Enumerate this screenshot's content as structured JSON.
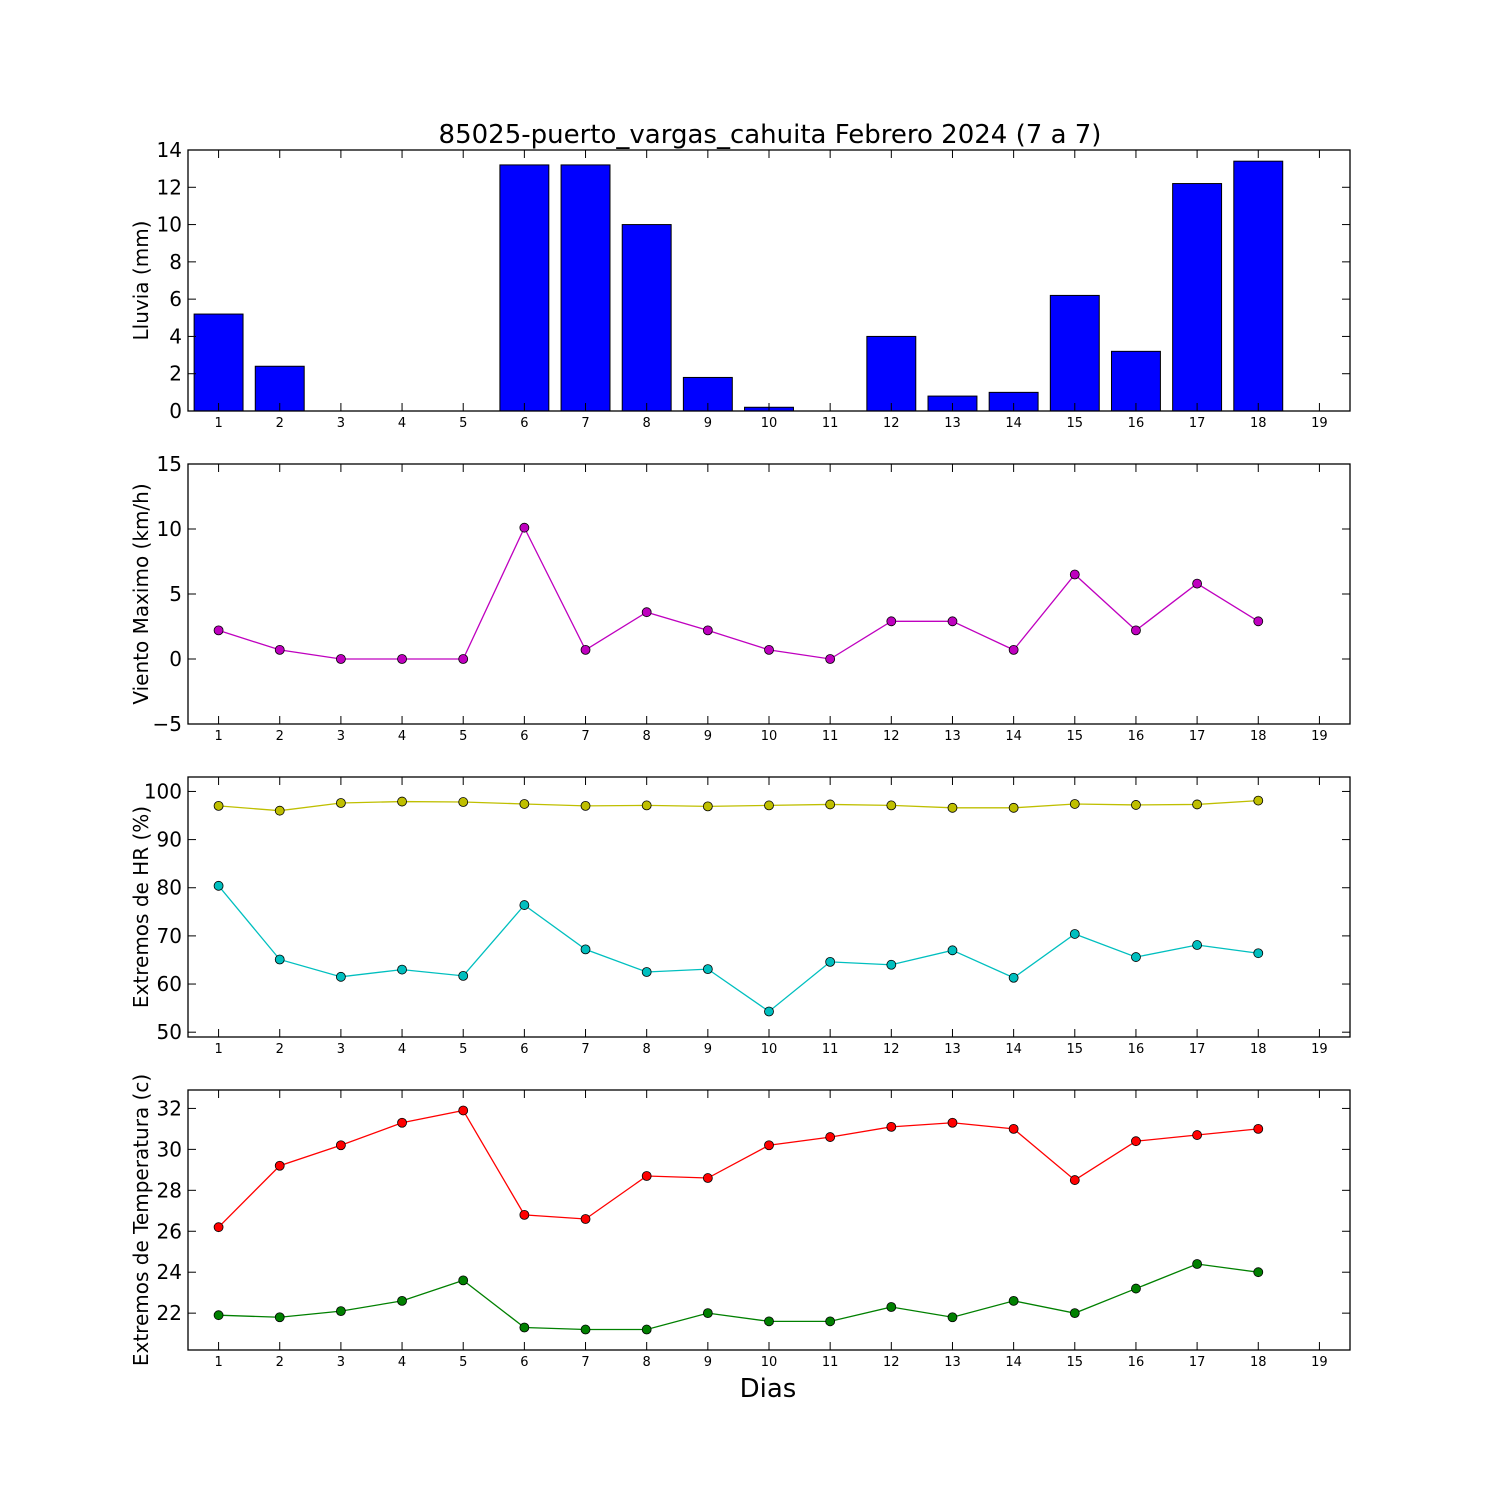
{
  "title": "85025-puerto_vargas_cahuita Febrero 2024  (7 a 7)",
  "xlabel": "Dias",
  "colors": {
    "rain": "#0000ff",
    "wind": "#bf00bf",
    "hr_max": "#bfbf00",
    "hr_min": "#00bfbf",
    "temp_max": "#ff0000",
    "temp_min": "#008000"
  },
  "chart_data": [
    {
      "type": "bar",
      "ylabel": "Lluvia (mm)",
      "xlim": [
        0.5,
        19.5
      ],
      "ylim": [
        0,
        14
      ],
      "yticks": [
        "0",
        "2",
        "4",
        "6",
        "8",
        "10",
        "12",
        "14"
      ],
      "xticks": [
        "1",
        "2",
        "3",
        "4",
        "5",
        "6",
        "7",
        "8",
        "9",
        "10",
        "11",
        "12",
        "13",
        "14",
        "15",
        "16",
        "17",
        "18",
        "19"
      ],
      "categories": [
        1,
        2,
        3,
        4,
        5,
        6,
        7,
        8,
        9,
        10,
        11,
        12,
        13,
        14,
        15,
        16,
        17,
        18
      ],
      "values": [
        5.2,
        2.4,
        0,
        0,
        0,
        13.2,
        13.2,
        10.0,
        1.8,
        0.2,
        0,
        4.0,
        0.8,
        1.0,
        6.2,
        3.2,
        12.2,
        13.4
      ]
    },
    {
      "type": "line",
      "ylabel": "Viento Maximo (km/h)",
      "xlim": [
        0.5,
        19.5
      ],
      "ylim": [
        -5,
        15
      ],
      "yticks": [
        "−5",
        "0",
        "5",
        "10",
        "15"
      ],
      "xticks": [
        "1",
        "2",
        "3",
        "4",
        "5",
        "6",
        "7",
        "8",
        "9",
        "10",
        "11",
        "12",
        "13",
        "14",
        "15",
        "16",
        "17",
        "18",
        "19"
      ],
      "x": [
        1,
        2,
        3,
        4,
        5,
        6,
        7,
        8,
        9,
        10,
        11,
        12,
        13,
        14,
        15,
        16,
        17,
        18
      ],
      "series": [
        {
          "values": [
            2.2,
            0.7,
            0,
            0,
            0,
            10.1,
            0.7,
            3.6,
            2.2,
            0.7,
            0,
            2.9,
            2.9,
            0.7,
            6.5,
            2.2,
            5.8,
            2.9
          ]
        }
      ]
    },
    {
      "type": "line",
      "ylabel": "Extremos de HR (%)",
      "xlim": [
        0.5,
        19.5
      ],
      "ylim": [
        49,
        103
      ],
      "yticks": [
        "50",
        "60",
        "70",
        "80",
        "90",
        "100"
      ],
      "xticks": [
        "1",
        "2",
        "3",
        "4",
        "5",
        "6",
        "7",
        "8",
        "9",
        "10",
        "11",
        "12",
        "13",
        "14",
        "15",
        "16",
        "17",
        "18",
        "19"
      ],
      "x": [
        1,
        2,
        3,
        4,
        5,
        6,
        7,
        8,
        9,
        10,
        11,
        12,
        13,
        14,
        15,
        16,
        17,
        18
      ],
      "series": [
        {
          "values": [
            97.0,
            96.0,
            97.6,
            97.9,
            97.8,
            97.4,
            97.0,
            97.1,
            96.9,
            97.1,
            97.3,
            97.1,
            96.6,
            96.6,
            97.4,
            97.2,
            97.3,
            98.1
          ]
        },
        {
          "values": [
            80.4,
            65.1,
            61.5,
            63.0,
            61.7,
            76.4,
            67.2,
            62.5,
            63.1,
            54.3,
            64.6,
            64.0,
            67.0,
            61.3,
            70.4,
            65.6,
            68.1,
            66.4
          ]
        }
      ]
    },
    {
      "type": "line",
      "ylabel": "Extremos de Temperatura (c)",
      "xlim": [
        0.5,
        19.5
      ],
      "ylim": [
        20.2,
        32.9
      ],
      "yticks": [
        "22",
        "24",
        "26",
        "28",
        "30",
        "32"
      ],
      "xticks": [
        "1",
        "2",
        "3",
        "4",
        "5",
        "6",
        "7",
        "8",
        "9",
        "10",
        "11",
        "12",
        "13",
        "14",
        "15",
        "16",
        "17",
        "18",
        "19"
      ],
      "x": [
        1,
        2,
        3,
        4,
        5,
        6,
        7,
        8,
        9,
        10,
        11,
        12,
        13,
        14,
        15,
        16,
        17,
        18
      ],
      "series": [
        {
          "values": [
            26.2,
            29.2,
            30.2,
            31.3,
            31.9,
            26.8,
            26.6,
            28.7,
            28.6,
            30.2,
            30.6,
            31.1,
            31.3,
            31.0,
            28.5,
            30.4,
            30.7,
            31.0
          ]
        },
        {
          "values": [
            21.9,
            21.8,
            22.1,
            22.6,
            23.6,
            21.3,
            21.2,
            21.2,
            22.0,
            21.6,
            21.6,
            22.3,
            21.8,
            22.6,
            22.0,
            23.2,
            24.4,
            24.0
          ]
        }
      ]
    }
  ]
}
